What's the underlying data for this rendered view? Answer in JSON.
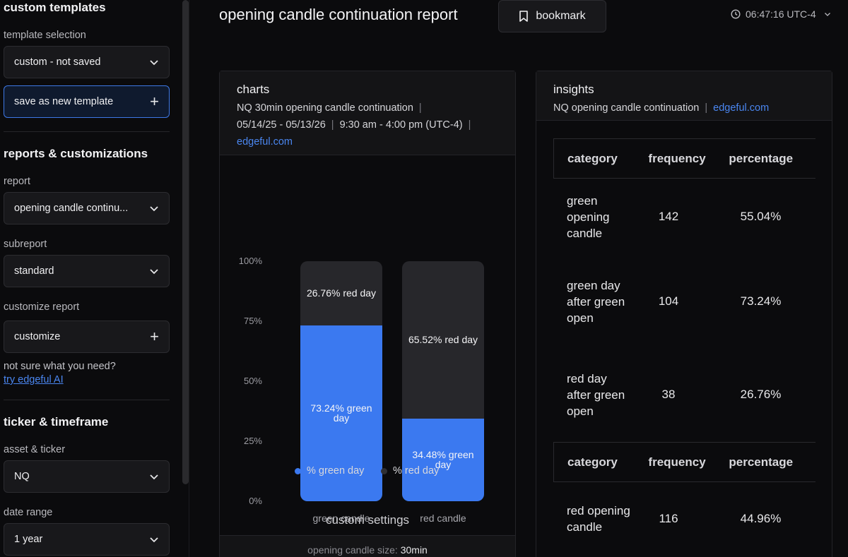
{
  "sidebar": {
    "custom_templates_heading": "custom templates",
    "template_selection_label": "template selection",
    "template_selection_value": "custom - not saved",
    "save_template_label": "save as new template",
    "reports_heading": "reports & customizations",
    "report_label": "report",
    "report_value": "opening candle continu...",
    "subreport_label": "subreport",
    "subreport_value": "standard",
    "customize_label": "customize report",
    "customize_value": "customize",
    "help_text": "not sure what you need?",
    "ai_link": "try edgeful AI",
    "ticker_heading": "ticker & timeframe",
    "asset_label": "asset & ticker",
    "asset_value": "NQ",
    "date_range_label": "date range",
    "date_range_value": "1 year"
  },
  "header": {
    "title": "opening candle continuation report",
    "bookmark_label": "bookmark",
    "clock": "06:47:16 UTC-4"
  },
  "charts_panel": {
    "title": "charts",
    "subtitle_report": "NQ 30min opening candle continuation",
    "date_range": "05/14/25 - 05/13/26",
    "session": "9:30 am - 4:00 pm (UTC-4)",
    "site": "edgeful.com",
    "custom_settings_title": "custom settings",
    "custom_setting_label": "opening candle size:",
    "custom_setting_value": "30min"
  },
  "chart_data": {
    "type": "bar",
    "stacked": true,
    "categories": [
      "green candle",
      "red candle"
    ],
    "series": [
      {
        "name": "% green day",
        "values": [
          73.24,
          34.48
        ],
        "color": "#3b79f0"
      },
      {
        "name": "% red day",
        "values": [
          26.76,
          65.52
        ],
        "color": "#27272b"
      }
    ],
    "bar_labels": {
      "green": [
        "73.24% green day",
        "34.48% green day"
      ],
      "red": [
        "26.76% red day",
        "65.52% red day"
      ]
    },
    "yticks": [
      "100%",
      "75%",
      "50%",
      "25%",
      "0%"
    ],
    "ylim": [
      0,
      100
    ],
    "legend_placement": "bottom"
  },
  "insights_panel": {
    "title": "insights",
    "subtitle": "NQ opening candle continuation",
    "site": "edgeful.com",
    "headers": [
      "category",
      "frequency",
      "percentage"
    ],
    "rows_group1": [
      {
        "category": "green opening candle",
        "frequency": "142",
        "percentage": "55.04%"
      },
      {
        "category": "green day after green open",
        "frequency": "104",
        "percentage": "73.24%"
      },
      {
        "category": "red day after green open",
        "frequency": "38",
        "percentage": "26.76%"
      }
    ],
    "rows_group2": [
      {
        "category": "red opening candle",
        "frequency": "116",
        "percentage": "44.96%"
      }
    ]
  },
  "colors": {
    "accent": "#3b79f0",
    "background": "#0b0b0d",
    "panel_header": "#141416"
  }
}
